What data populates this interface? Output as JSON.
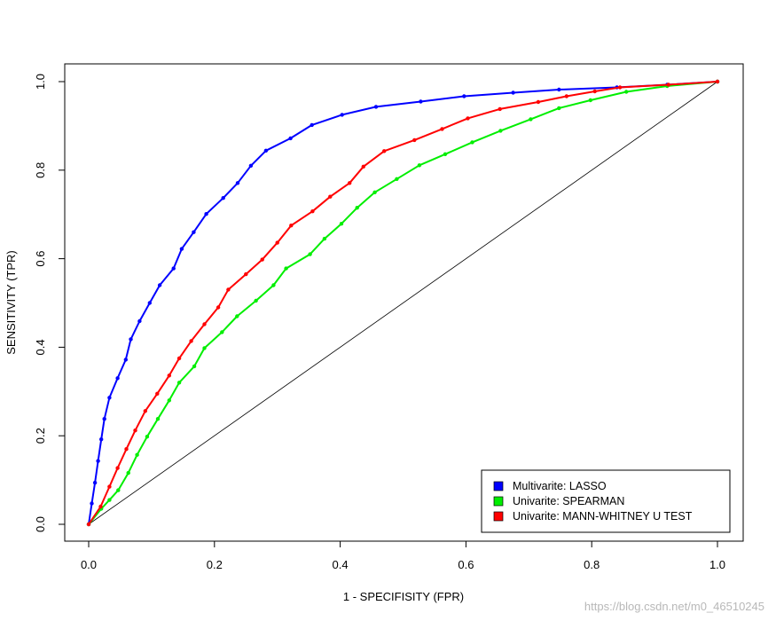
{
  "chart_data": {
    "type": "line",
    "xlabel": "1 - SPECIFISITY (FPR)",
    "ylabel": "SENSITIVITY (TPR)",
    "xlim": [
      0,
      1
    ],
    "ylim": [
      0,
      1
    ],
    "x_ticks": [
      "0.0",
      "0.2",
      "0.4",
      "0.6",
      "0.8",
      "1.0"
    ],
    "y_ticks": [
      "0.0",
      "0.2",
      "0.4",
      "0.6",
      "0.8",
      "1.0"
    ],
    "grid": false,
    "legend_position": "bottom-right",
    "reference_line": {
      "from": [
        0,
        0
      ],
      "to": [
        1,
        1
      ],
      "color": "#000000"
    },
    "series": [
      {
        "name": "Multivarite: LASSO",
        "color": "#0000ff",
        "points": [
          [
            0.0,
            0.0
          ],
          [
            0.005,
            0.047
          ],
          [
            0.01,
            0.094
          ],
          [
            0.015,
            0.143
          ],
          [
            0.02,
            0.192
          ],
          [
            0.025,
            0.238
          ],
          [
            0.033,
            0.286
          ],
          [
            0.046,
            0.33
          ],
          [
            0.059,
            0.372
          ],
          [
            0.067,
            0.418
          ],
          [
            0.081,
            0.459
          ],
          [
            0.097,
            0.5
          ],
          [
            0.113,
            0.54
          ],
          [
            0.135,
            0.578
          ],
          [
            0.148,
            0.622
          ],
          [
            0.167,
            0.66
          ],
          [
            0.187,
            0.701
          ],
          [
            0.214,
            0.737
          ],
          [
            0.237,
            0.771
          ],
          [
            0.258,
            0.81
          ],
          [
            0.282,
            0.844
          ],
          [
            0.321,
            0.872
          ],
          [
            0.355,
            0.902
          ],
          [
            0.403,
            0.925
          ],
          [
            0.457,
            0.943
          ],
          [
            0.528,
            0.955
          ],
          [
            0.597,
            0.967
          ],
          [
            0.675,
            0.975
          ],
          [
            0.748,
            0.982
          ],
          [
            0.84,
            0.987
          ],
          [
            0.92,
            0.993
          ],
          [
            1.0,
            1.0
          ]
        ]
      },
      {
        "name": "Univarite: SPEARMAN",
        "color": "#00ee00",
        "points": [
          [
            0.0,
            0.0
          ],
          [
            0.02,
            0.035
          ],
          [
            0.033,
            0.055
          ],
          [
            0.047,
            0.077
          ],
          [
            0.063,
            0.116
          ],
          [
            0.077,
            0.157
          ],
          [
            0.093,
            0.198
          ],
          [
            0.11,
            0.238
          ],
          [
            0.128,
            0.28
          ],
          [
            0.144,
            0.32
          ],
          [
            0.168,
            0.357
          ],
          [
            0.184,
            0.398
          ],
          [
            0.212,
            0.434
          ],
          [
            0.236,
            0.47
          ],
          [
            0.266,
            0.505
          ],
          [
            0.294,
            0.54
          ],
          [
            0.314,
            0.578
          ],
          [
            0.352,
            0.61
          ],
          [
            0.375,
            0.645
          ],
          [
            0.402,
            0.679
          ],
          [
            0.427,
            0.715
          ],
          [
            0.455,
            0.75
          ],
          [
            0.49,
            0.78
          ],
          [
            0.526,
            0.811
          ],
          [
            0.567,
            0.836
          ],
          [
            0.61,
            0.863
          ],
          [
            0.655,
            0.889
          ],
          [
            0.703,
            0.915
          ],
          [
            0.748,
            0.94
          ],
          [
            0.798,
            0.958
          ],
          [
            0.855,
            0.977
          ],
          [
            0.92,
            0.99
          ],
          [
            1.0,
            1.0
          ]
        ]
      },
      {
        "name": "Univarite: MANN-WHITNEY U TEST",
        "color": "#ff0000",
        "points": [
          [
            0.0,
            0.0
          ],
          [
            0.019,
            0.04
          ],
          [
            0.033,
            0.085
          ],
          [
            0.046,
            0.127
          ],
          [
            0.06,
            0.17
          ],
          [
            0.074,
            0.212
          ],
          [
            0.09,
            0.256
          ],
          [
            0.109,
            0.295
          ],
          [
            0.128,
            0.336
          ],
          [
            0.144,
            0.375
          ],
          [
            0.163,
            0.414
          ],
          [
            0.184,
            0.452
          ],
          [
            0.206,
            0.49
          ],
          [
            0.222,
            0.53
          ],
          [
            0.25,
            0.565
          ],
          [
            0.276,
            0.598
          ],
          [
            0.3,
            0.636
          ],
          [
            0.322,
            0.675
          ],
          [
            0.356,
            0.707
          ],
          [
            0.384,
            0.74
          ],
          [
            0.415,
            0.771
          ],
          [
            0.437,
            0.808
          ],
          [
            0.47,
            0.843
          ],
          [
            0.518,
            0.868
          ],
          [
            0.562,
            0.893
          ],
          [
            0.603,
            0.917
          ],
          [
            0.654,
            0.938
          ],
          [
            0.715,
            0.954
          ],
          [
            0.76,
            0.967
          ],
          [
            0.805,
            0.978
          ],
          [
            0.845,
            0.987
          ],
          [
            0.922,
            0.993
          ],
          [
            1.0,
            1.0
          ]
        ]
      }
    ]
  },
  "watermark": "https://blog.csdn.net/m0_46510245"
}
